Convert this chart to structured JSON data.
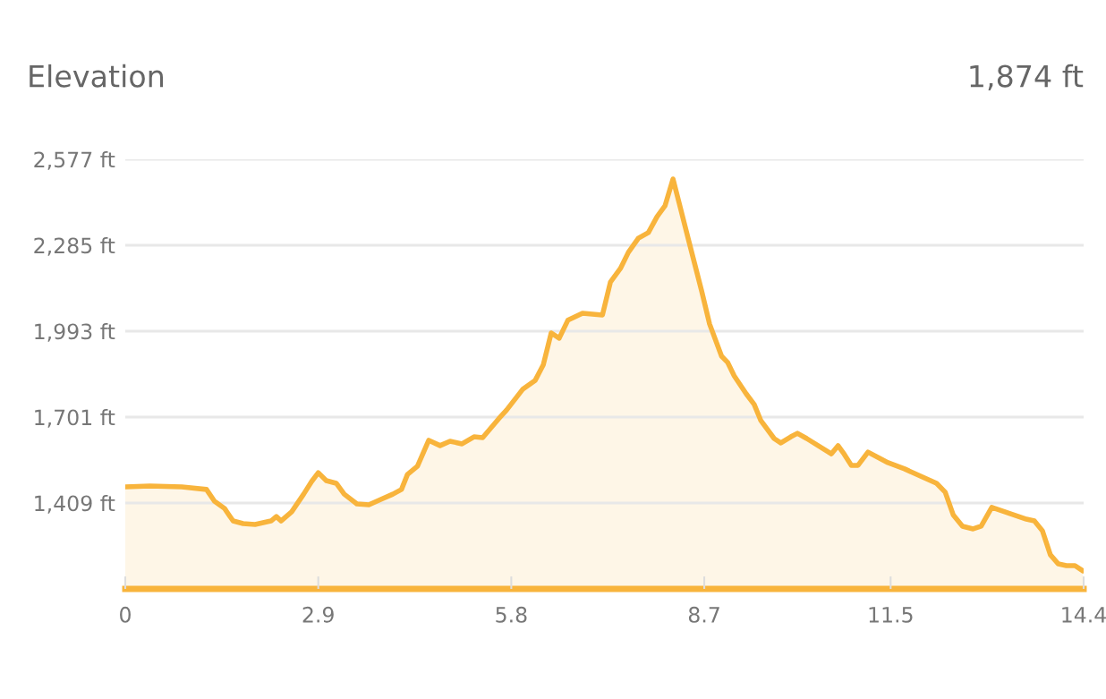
{
  "chart_data": {
    "type": "area",
    "title": "Elevation",
    "annotations": [
      "1,874 ft"
    ],
    "x": [
      0,
      0.37,
      0.85,
      1.22,
      1.34,
      1.49,
      1.62,
      1.77,
      1.95,
      2.19,
      2.27,
      2.34,
      2.5,
      2.68,
      2.8,
      2.9,
      3.02,
      3.17,
      3.29,
      3.48,
      3.66,
      3.84,
      4.02,
      4.15,
      4.24,
      4.39,
      4.56,
      4.73,
      4.88,
      5.06,
      5.24,
      5.37,
      5.61,
      5.73,
      5.97,
      6.16,
      6.28,
      6.4,
      6.52,
      6.65,
      6.87,
      7.17,
      7.29,
      7.44,
      7.56,
      7.71,
      7.86,
      7.99,
      8.11,
      8.23,
      8.35,
      8.47,
      8.66,
      8.78,
      8.96,
      9.05,
      9.15,
      9.33,
      9.45,
      9.55,
      9.75,
      9.85,
      10.0,
      10.1,
      10.24,
      10.61,
      10.71,
      10.79,
      10.91,
      11.01,
      11.16,
      11.46,
      11.71,
      11.95,
      12.19,
      12.32,
      12.44,
      12.58,
      12.74,
      12.86,
      13.02,
      13.54,
      13.66,
      13.78,
      13.9,
      14.02,
      14.14,
      14.27,
      14.39
    ],
    "series": [
      {
        "color": "#f8b43c",
        "values": [
          1464,
          1467,
          1464,
          1455,
          1415,
          1391,
          1348,
          1339,
          1336,
          1348,
          1363,
          1348,
          1379,
          1439,
          1482,
          1512,
          1485,
          1476,
          1439,
          1406,
          1403,
          1421,
          1439,
          1455,
          1506,
          1534,
          1622,
          1604,
          1619,
          1610,
          1634,
          1631,
          1695,
          1725,
          1795,
          1826,
          1878,
          1987,
          1969,
          2030,
          2054,
          2048,
          2160,
          2206,
          2261,
          2309,
          2328,
          2382,
          2419,
          2510,
          2404,
          2297,
          2130,
          2017,
          1908,
          1887,
          1841,
          1780,
          1744,
          1689,
          1628,
          1613,
          1634,
          1646,
          1628,
          1576,
          1604,
          1579,
          1537,
          1537,
          1582,
          1546,
          1525,
          1500,
          1476,
          1446,
          1369,
          1330,
          1321,
          1330,
          1394,
          1354,
          1348,
          1315,
          1233,
          1202,
          1196,
          1196,
          1178
        ]
      }
    ],
    "xlim": [
      0,
      14.4
    ],
    "xticks": [
      0,
      2.9,
      5.8,
      8.7,
      11.5,
      14.4
    ],
    "ylim": [
      1117,
      2577
    ],
    "yticks": [
      {
        "value": 1409,
        "label": "1,409 ft"
      },
      {
        "value": 1701,
        "label": "1,701 ft"
      },
      {
        "value": 1993,
        "label": "1,993 ft"
      },
      {
        "value": 2285,
        "label": "2,285 ft"
      },
      {
        "value": 2577,
        "label": "2,577 ft"
      }
    ],
    "grid": "y",
    "legend": false
  }
}
